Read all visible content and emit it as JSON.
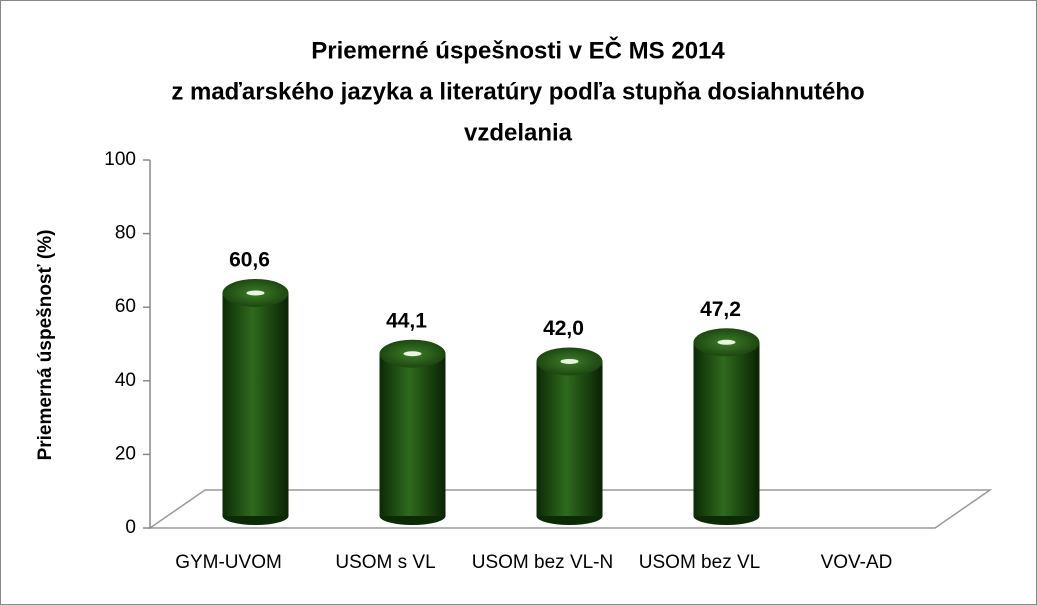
{
  "chart_data": {
    "type": "bar",
    "title": [
      "Priemerné úspešnosti v EČ MS 2014",
      "z maďarského jazyka a literatúry podľa stupňa dosiahnutého",
      "vzdelania"
    ],
    "y_label": "Priemerná úspešnosť (%)",
    "categories": [
      "GYM-UVOM",
      "USOM s VL",
      "USOM bez VL-N",
      "USOM bez VL",
      "VOV-AD"
    ],
    "values": [
      60.6,
      44.1,
      42.0,
      47.2,
      null
    ],
    "value_labels": [
      "60,6",
      "44,1",
      "42,0",
      "47,2",
      null
    ],
    "color": "#1f4f12",
    "ylim": [
      0,
      100
    ],
    "yticks": [
      0,
      20,
      40,
      60,
      80,
      100
    ]
  }
}
